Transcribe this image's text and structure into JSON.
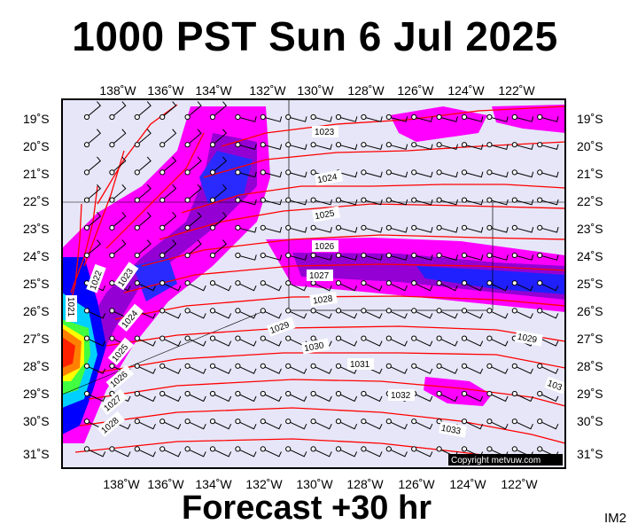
{
  "title": "1000 PST Sun 6 Jul 2025",
  "forecast": "Forecast +30 hr",
  "code": "IM2",
  "copyright": "Copyright metvuw.com",
  "lon_labels": [
    "138˚W",
    "136˚W",
    "134˚W",
    "132˚W",
    "130˚W",
    "128˚W",
    "126˚W",
    "124˚W",
    "122˚W"
  ],
  "lat_labels": [
    "19˚S",
    "20˚S",
    "21˚S",
    "22˚S",
    "23˚S",
    "24˚S",
    "25˚S",
    "26˚S",
    "27˚S",
    "28˚S",
    "29˚S",
    "30˚S",
    "31˚S"
  ],
  "isobar_labels": [
    "1023",
    "1024",
    "1025",
    "1026",
    "1027",
    "1028",
    "1029",
    "1030",
    "1031",
    "1032",
    "1033",
    "1029",
    "1022",
    "1023",
    "1024",
    "1025",
    "1026",
    "1027",
    "1028",
    "1021",
    "103"
  ],
  "colors": {
    "background": "#e6e6f8",
    "isobar": "#ff0000",
    "magenta": "#ff00ff",
    "purple": "#9400d3",
    "blue": "#1010ff"
  }
}
